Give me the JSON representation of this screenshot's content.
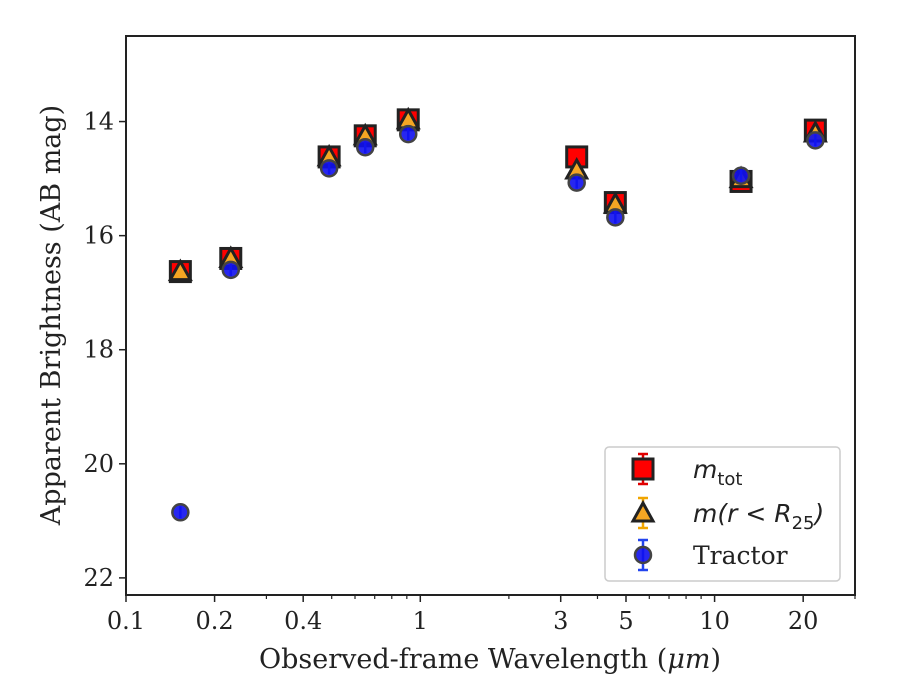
{
  "chart_data": {
    "type": "scatter",
    "xlabel_prefix": "Observed-frame Wavelength (",
    "xlabel_unit": "μm",
    "xlabel_suffix": ")",
    "ylabel": "Apparent Brightness (AB mag)",
    "xscale": "log",
    "xlim": [
      0.1,
      30
    ],
    "ylim": [
      22.3,
      12.5
    ],
    "y_inverted": true,
    "x_ticks": [
      {
        "value": 0.1,
        "label": "0.1"
      },
      {
        "value": 0.2,
        "label": "0.2"
      },
      {
        "value": 0.4,
        "label": "0.4"
      },
      {
        "value": 1,
        "label": "1"
      },
      {
        "value": 3,
        "label": "3"
      },
      {
        "value": 5,
        "label": "5"
      },
      {
        "value": 10,
        "label": "10"
      },
      {
        "value": 20,
        "label": "20"
      }
    ],
    "y_ticks": [
      {
        "value": 14,
        "label": "14"
      },
      {
        "value": 16,
        "label": "16"
      },
      {
        "value": 18,
        "label": "18"
      },
      {
        "value": 20,
        "label": "20"
      },
      {
        "value": 22,
        "label": "22"
      }
    ],
    "grid": false,
    "legend_position": "lower-right",
    "series": [
      {
        "key": "mtot",
        "legend_main": "m",
        "legend_sub": "tot",
        "marker": "square",
        "color": "#ff0000",
        "edge_color": "#222222",
        "error_color": "#e00000",
        "points": [
          {
            "x": 0.153,
            "y": 16.63
          },
          {
            "x": 0.227,
            "y": 16.4
          },
          {
            "x": 0.49,
            "y": 14.62
          },
          {
            "x": 0.65,
            "y": 14.25
          },
          {
            "x": 0.91,
            "y": 13.97
          },
          {
            "x": 3.4,
            "y": 14.62
          },
          {
            "x": 4.6,
            "y": 15.42
          },
          {
            "x": 12.3,
            "y": 15.05
          },
          {
            "x": 22.0,
            "y": 14.15
          }
        ]
      },
      {
        "key": "mr25",
        "legend_main": "m(r < R",
        "legend_sub": "25",
        "legend_end": ")",
        "marker": "triangle",
        "color": "#f5a623",
        "edge_color": "#222222",
        "error_color": "#f0a500",
        "points": [
          {
            "x": 0.153,
            "y": 16.63
          },
          {
            "x": 0.227,
            "y": 16.4
          },
          {
            "x": 0.49,
            "y": 14.62
          },
          {
            "x": 0.65,
            "y": 14.25
          },
          {
            "x": 0.91,
            "y": 13.97
          },
          {
            "x": 3.4,
            "y": 14.85
          },
          {
            "x": 4.6,
            "y": 15.45
          },
          {
            "x": 12.3,
            "y": 15.0
          },
          {
            "x": 22.0,
            "y": 14.2
          }
        ]
      },
      {
        "key": "tractor",
        "legend_main": "Tractor",
        "marker": "circle",
        "color": "#1010ee",
        "edge_color": "#444444",
        "error_color": "#2244ee",
        "points": [
          {
            "x": 0.153,
            "y": 20.85
          },
          {
            "x": 0.227,
            "y": 16.6
          },
          {
            "x": 0.49,
            "y": 14.82
          },
          {
            "x": 0.65,
            "y": 14.45
          },
          {
            "x": 0.91,
            "y": 14.22
          },
          {
            "x": 3.4,
            "y": 15.07
          },
          {
            "x": 4.6,
            "y": 15.68
          },
          {
            "x": 12.3,
            "y": 14.95
          },
          {
            "x": 22.0,
            "y": 14.33
          }
        ]
      }
    ]
  }
}
